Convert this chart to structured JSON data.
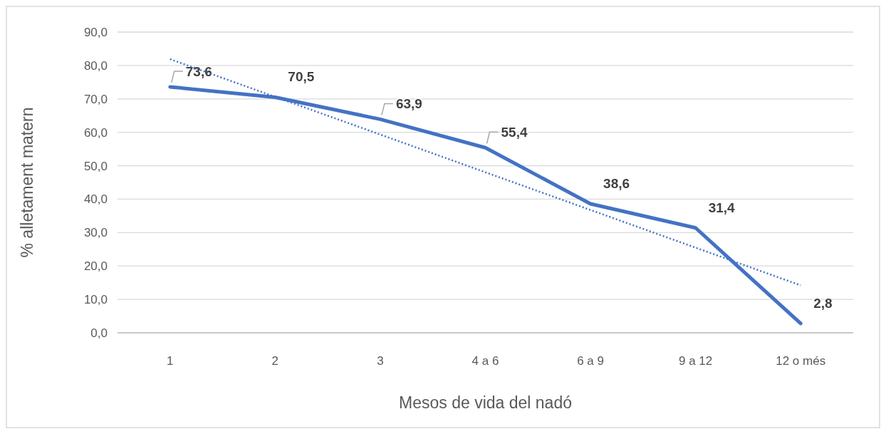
{
  "chart_data": {
    "type": "line",
    "xlabel": "Mesos de vida del nadó",
    "ylabel": "% alletament matern",
    "categories": [
      "1",
      "2",
      "3",
      "4 a 6",
      "6 a 9",
      "9 a 12",
      "12 o més"
    ],
    "series": [
      {
        "color": "#4472c4",
        "values": [
          73.6,
          70.5,
          63.9,
          55.4,
          38.6,
          31.4,
          2.8
        ],
        "value_labels": [
          "73,6",
          "70,5",
          "63,9",
          "55,4",
          "38,6",
          "31,4",
          "2,8"
        ]
      },
      {
        "type": "line",
        "x": [
          "1",
          "12 o més"
        ],
        "values": [
          81.9,
          14.2
        ],
        "color": "#4472c4",
        "line_style": "dotted"
      }
    ],
    "ylim": [
      0,
      90
    ],
    "yticks": [
      {
        "value": 0,
        "label": "0,0"
      },
      {
        "value": 10,
        "label": "10,0"
      },
      {
        "value": 20,
        "label": "20,0"
      },
      {
        "value": 30,
        "label": "30,0"
      },
      {
        "value": 40,
        "label": "40,0"
      },
      {
        "value": 50,
        "label": "50,0"
      },
      {
        "value": 60,
        "label": "60,0"
      },
      {
        "value": 70,
        "label": "70,0"
      },
      {
        "value": 80,
        "label": "80,0"
      },
      {
        "value": 90,
        "label": "90,0"
      }
    ],
    "grid": "y",
    "marker": "none",
    "line_style": "solid"
  }
}
